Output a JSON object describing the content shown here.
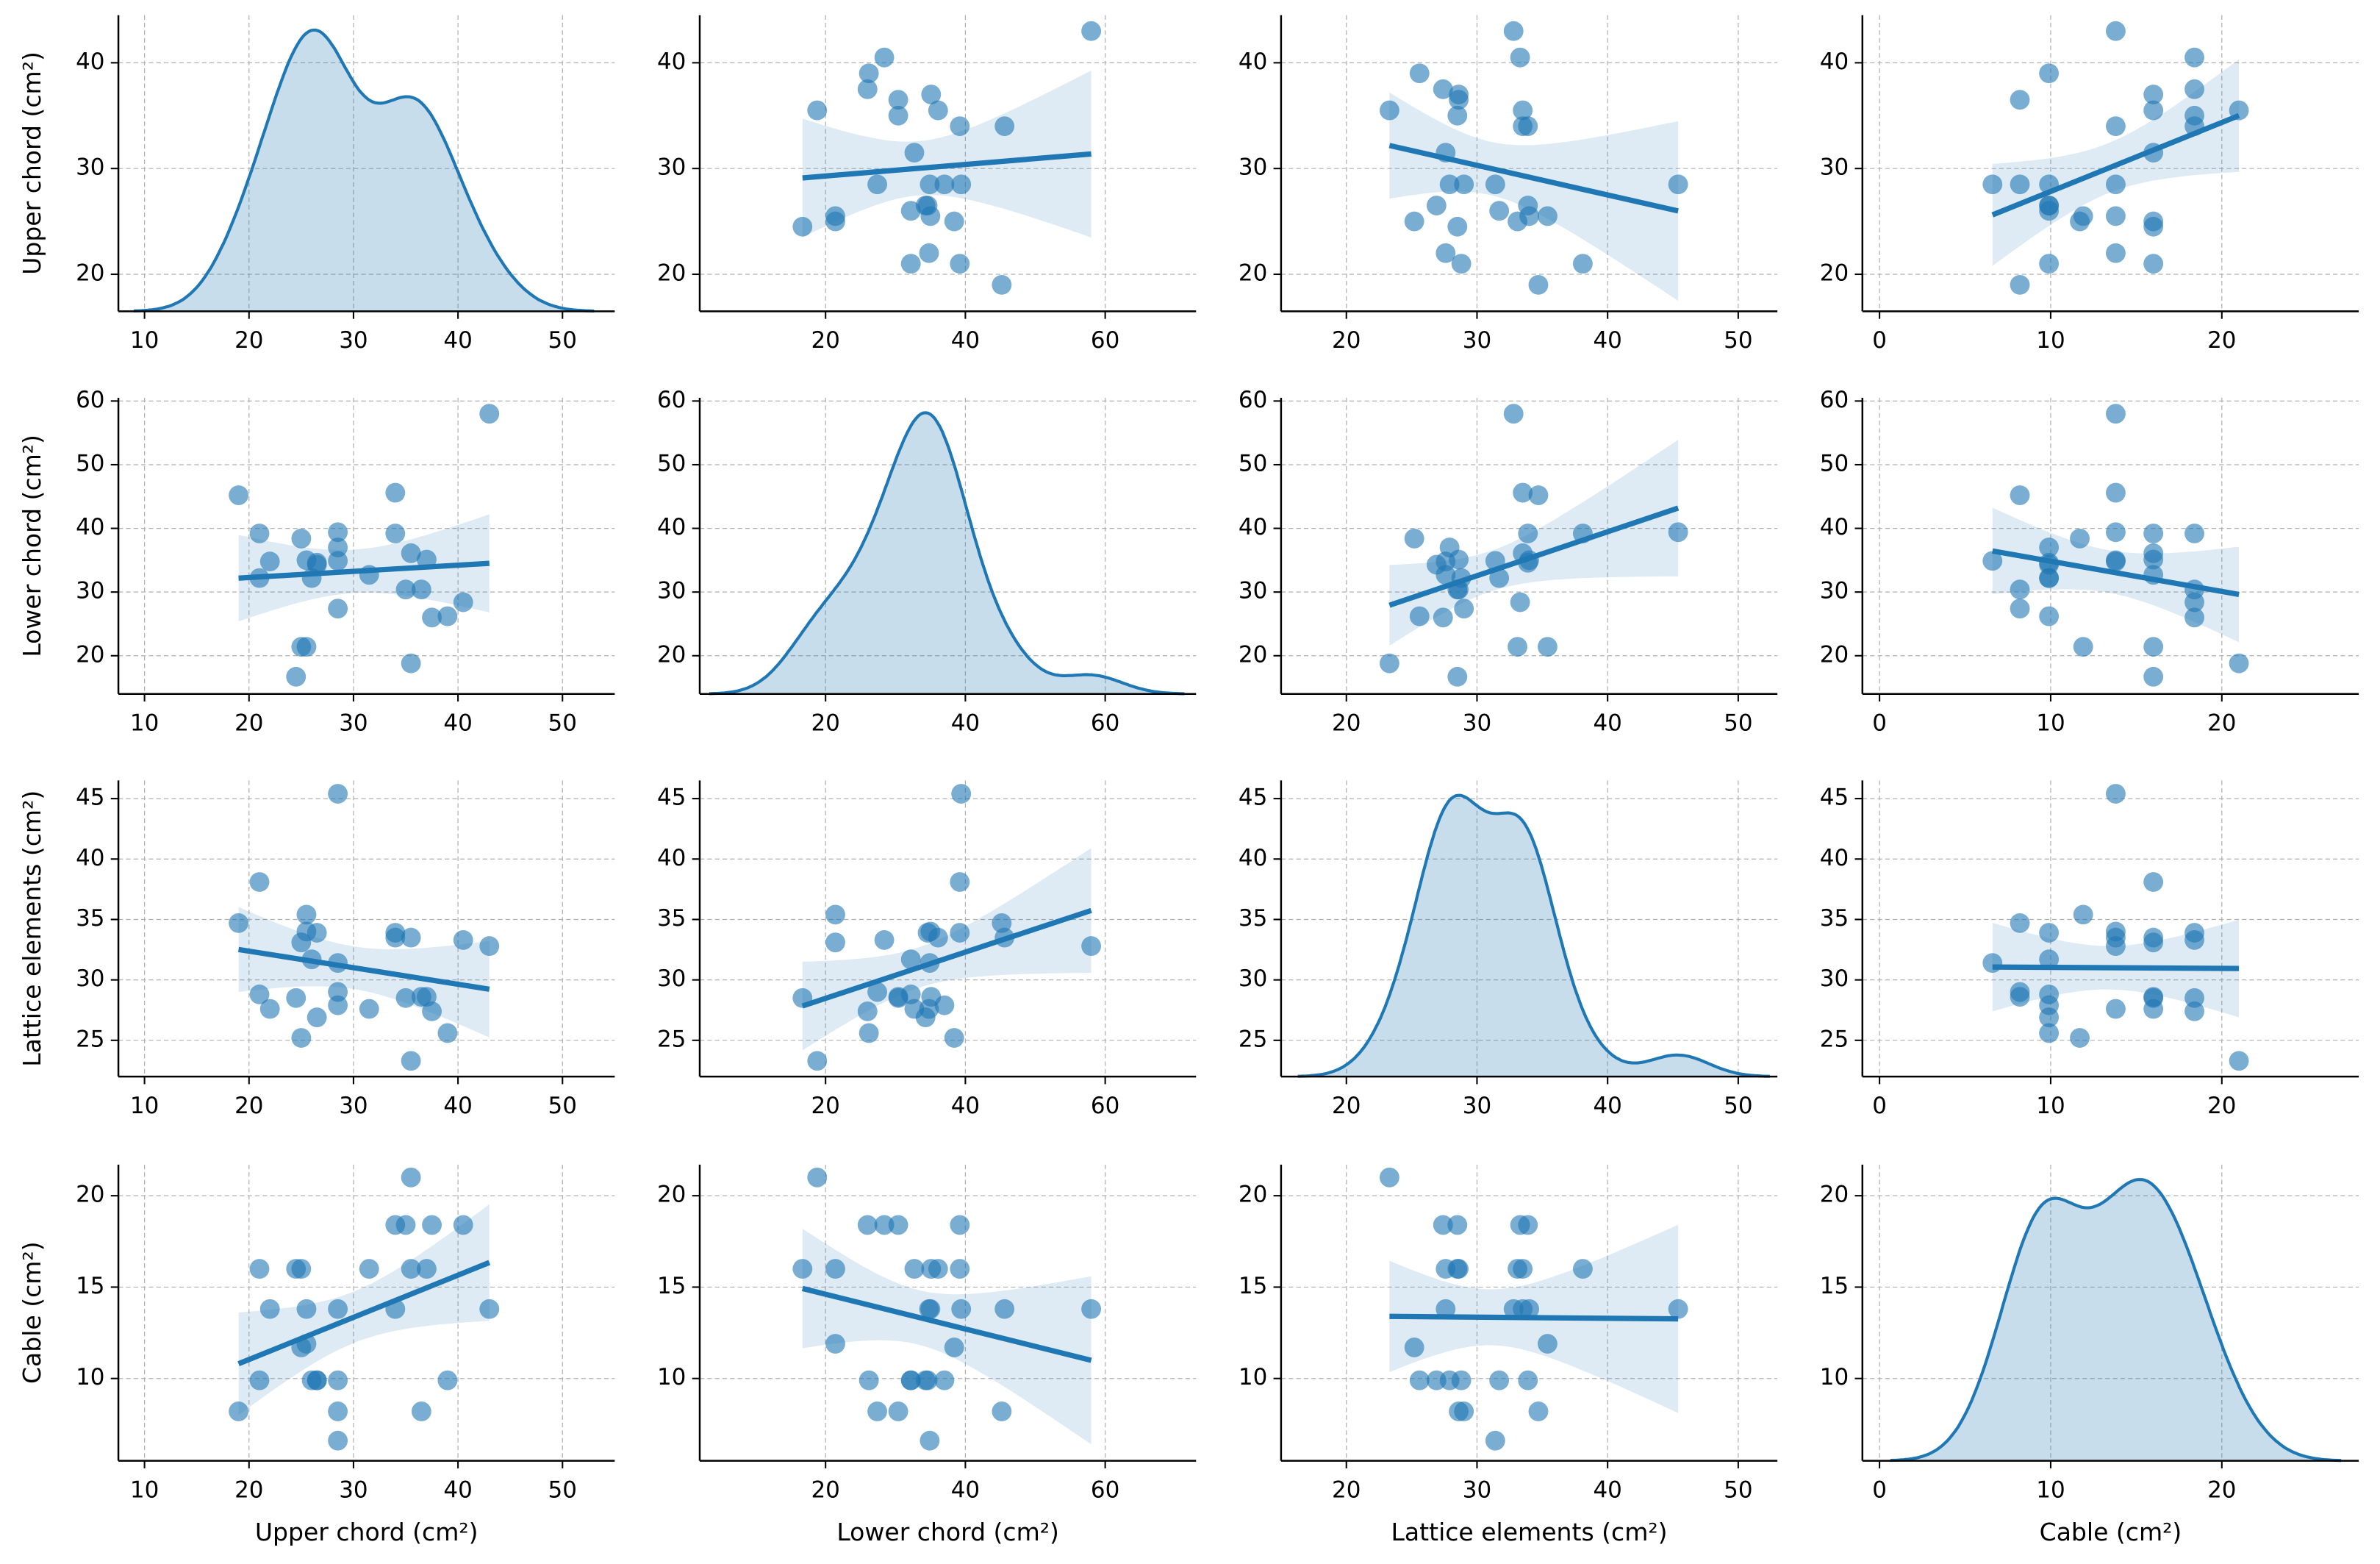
{
  "chart_data": {
    "type": "pairplot",
    "color": "#1f77b4",
    "variables": [
      {
        "name": "Upper chord (cm²)",
        "lim": [
          7.5,
          55
        ],
        "ticks": [
          10,
          20,
          30,
          40,
          50
        ],
        "ylim": [
          16.5,
          44.5
        ],
        "yticks": [
          20,
          30,
          40
        ],
        "values": [
          19,
          21,
          21,
          22,
          24.5,
          25,
          25,
          25.5,
          25.5,
          26,
          26.5,
          26.5,
          28.5,
          28.5,
          28.5,
          28.5,
          31.5,
          34,
          34,
          35,
          35.5,
          35.5,
          36.5,
          37,
          37.5,
          39,
          40.5,
          43
        ]
      },
      {
        "name": "Lower chord (cm²)",
        "lim": [
          2,
          73
        ],
        "ticks": [
          20,
          40,
          60
        ],
        "ylim": [
          14,
          60.5
        ],
        "yticks": [
          20,
          30,
          40,
          50,
          60
        ],
        "values": [
          45.2,
          39.2,
          32.2,
          34.8,
          16.7,
          21.4,
          38.4,
          21.4,
          35,
          32.2,
          34.3,
          34.6,
          39.4,
          37,
          34.9,
          27.4,
          32.7,
          39.2,
          45.6,
          30.4,
          18.8,
          36.1,
          30.4,
          35.1,
          26,
          26.2,
          28.4,
          58
        ]
      },
      {
        "name": "Lattice elements (cm²)",
        "lim": [
          15,
          53
        ],
        "ticks": [
          20,
          30,
          40,
          50
        ],
        "ylim": [
          22,
          46.5
        ],
        "yticks": [
          25,
          30,
          35,
          40,
          45
        ],
        "values": [
          34.7,
          38.1,
          28.8,
          27.6,
          28.5,
          33.1,
          25.2,
          35.4,
          34,
          31.7,
          26.9,
          33.9,
          45.4,
          27.9,
          31.4,
          29,
          27.6,
          33.9,
          33.5,
          28.5,
          23.3,
          33.5,
          28.6,
          28.6,
          27.4,
          25.6,
          33.3,
          32.8
        ]
      },
      {
        "name": "Cable (cm²)",
        "lim": [
          -1,
          28
        ],
        "ticks": [
          0,
          10,
          20
        ],
        "ylim": [
          5.5,
          21.7
        ],
        "yticks": [
          10,
          15,
          20
        ],
        "values": [
          8.2,
          16,
          9.9,
          13.8,
          16,
          16,
          11.7,
          11.9,
          13.8,
          9.9,
          9.9,
          9.9,
          13.8,
          9.9,
          6.6,
          8.2,
          16,
          18.4,
          13.8,
          18.4,
          21,
          16,
          8.2,
          16,
          18.4,
          9.9,
          18.4,
          13.8
        ]
      }
    ]
  }
}
